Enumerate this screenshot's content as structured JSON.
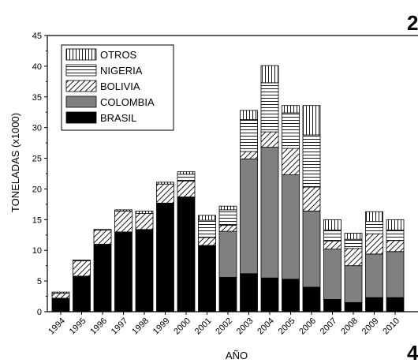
{
  "chart_data": {
    "type": "bar",
    "stacked": true,
    "xlabel": "AÑO",
    "ylabel": "TONELADAS (x1000)",
    "ylim": [
      0,
      45
    ],
    "yticks": [
      "0",
      "5",
      "10",
      "15",
      "20",
      "25",
      "30",
      "35",
      "40",
      "45"
    ],
    "categories": [
      "1994",
      "1995",
      "1996",
      "1997",
      "1998",
      "1999",
      "2000",
      "2001",
      "2002",
      "2003",
      "2004",
      "2005",
      "2006",
      "2007",
      "2008",
      "2009",
      "2010"
    ],
    "legend_position": "top-left",
    "grid": false,
    "series": [
      {
        "name": "BRASIL",
        "pattern": "solid-black",
        "values": [
          2.2,
          5.8,
          11.0,
          13.0,
          13.4,
          17.7,
          18.7,
          10.8,
          5.6,
          6.2,
          5.5,
          5.3,
          4.0,
          2.0,
          1.5,
          2.3,
          2.3
        ]
      },
      {
        "name": "COLOMBIA",
        "pattern": "solid-gray",
        "values": [
          0,
          0,
          0,
          0,
          0,
          0,
          0,
          0,
          7.5,
          18.7,
          21.3,
          17.0,
          12.4,
          8.2,
          6.0,
          7.1,
          7.5
        ]
      },
      {
        "name": "BOLIVIA",
        "pattern": "diagonal-hatch",
        "values": [
          0.8,
          2.5,
          2.3,
          3.4,
          2.6,
          3.1,
          2.6,
          1.3,
          1.0,
          1.2,
          2.5,
          4.3,
          3.9,
          1.3,
          2.8,
          3.3,
          1.8
        ]
      },
      {
        "name": "NIGERIA",
        "pattern": "horizontal-lines",
        "values": [
          0,
          0,
          0,
          0,
          0,
          0,
          1.1,
          2.8,
          2.5,
          5.2,
          8.0,
          5.8,
          8.5,
          1.8,
          1.5,
          2.0,
          1.7
        ]
      },
      {
        "name": "OTROS",
        "pattern": "vertical-lines",
        "values": [
          0.2,
          0.1,
          0.1,
          0.2,
          0.4,
          0.3,
          0.4,
          0.8,
          0.6,
          1.5,
          2.8,
          1.2,
          4.8,
          1.7,
          1.0,
          1.6,
          1.7
        ]
      }
    ],
    "legend_order": [
      "OTROS",
      "NIGERIA",
      "BOLIVIA",
      "COLOMBIA",
      "BRASIL"
    ],
    "corner_labels": [
      "2",
      "4"
    ]
  }
}
